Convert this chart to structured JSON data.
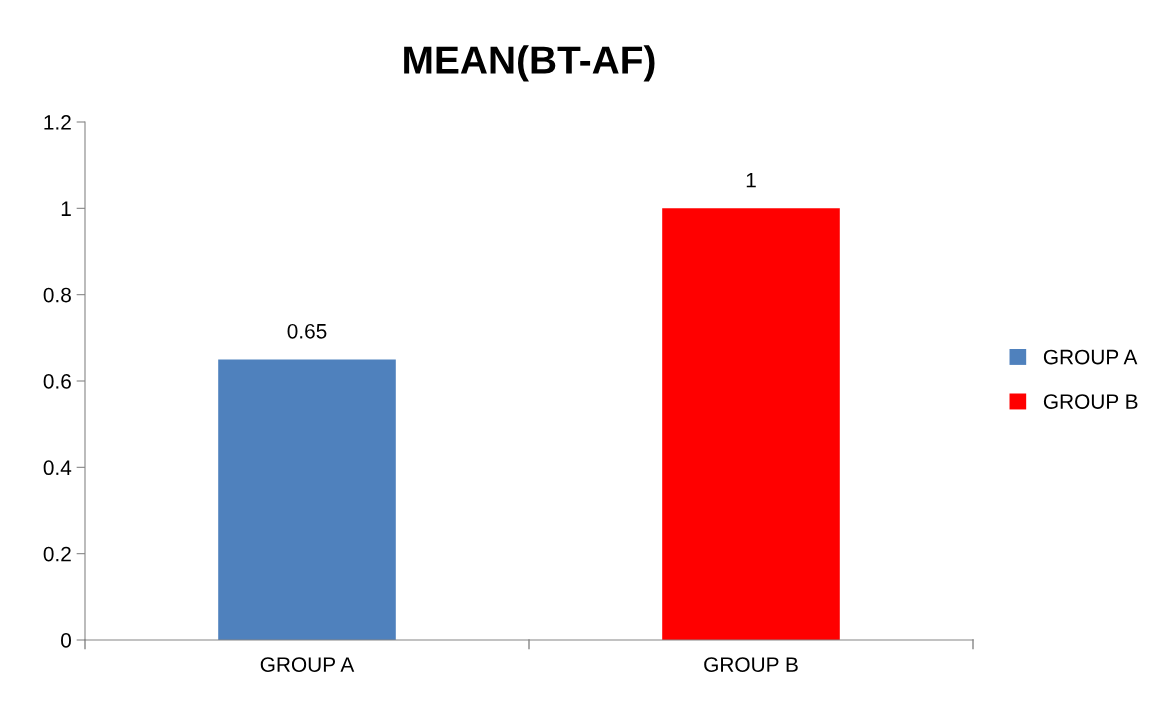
{
  "chart_data": {
    "type": "bar",
    "title": "MEAN(BT-AF)",
    "categories": [
      "GROUP A",
      "GROUP B"
    ],
    "series": [
      {
        "name": "GROUP A",
        "color": "#4f81bd",
        "values": [
          0.65,
          null
        ]
      },
      {
        "name": "GROUP B",
        "color": "#ff0000",
        "values": [
          null,
          1
        ]
      }
    ],
    "ylim": [
      0,
      1.2
    ],
    "yticks": [
      0,
      0.2,
      0.4,
      0.6,
      0.8,
      1,
      1.2
    ],
    "data_labels": true,
    "legend": "right",
    "grid": false
  }
}
